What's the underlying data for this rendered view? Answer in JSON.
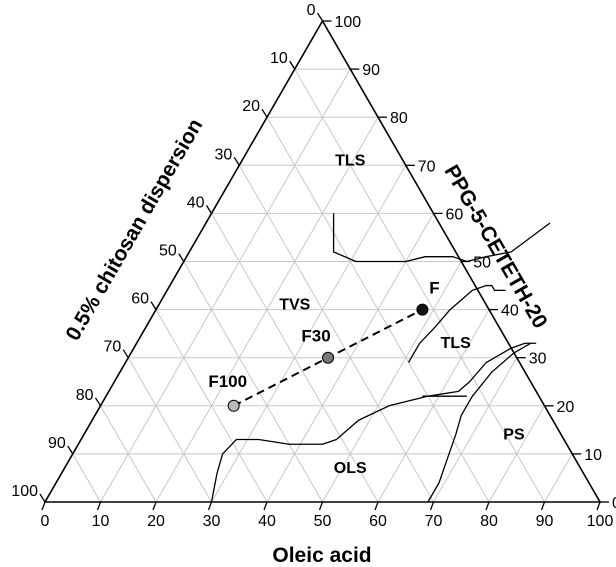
{
  "chart_data": {
    "type": "ternary",
    "axes": {
      "bottom": {
        "label": "Oleic acid",
        "ticks": [
          "0",
          "10",
          "20",
          "30",
          "40",
          "50",
          "60",
          "70",
          "80",
          "90",
          "100"
        ]
      },
      "right": {
        "label": "PPG-5-CETETH-20",
        "ticks": [
          "0",
          "10",
          "20",
          "30",
          "40",
          "50",
          "60",
          "70",
          "80",
          "90",
          "100"
        ]
      },
      "left": {
        "label": "0.5% chitosan dispersion",
        "ticks": [
          "0",
          "10",
          "20",
          "30",
          "40",
          "50",
          "60",
          "70",
          "80",
          "90",
          "100"
        ]
      }
    },
    "grid": true,
    "grid_step": 10,
    "regions": [
      {
        "label": "TLS",
        "a": 20,
        "b": 70
      },
      {
        "label": "TVS",
        "a": 25,
        "b": 40
      },
      {
        "label": "TLS",
        "a": 58,
        "b": 32
      },
      {
        "label": "PS",
        "a": 78,
        "b": 13
      },
      {
        "label": "OLS",
        "a": 52,
        "b": 6
      }
    ],
    "points": [
      {
        "label": "F",
        "a": 48,
        "b": 40,
        "color": "#111111"
      },
      {
        "label": "F30",
        "a": 36,
        "b": 30,
        "color": "#777777"
      },
      {
        "label": "F100",
        "a": 24,
        "b": 20,
        "color": "#bbbbbb"
      }
    ],
    "dashed_line": [
      "F100",
      "F30",
      "F"
    ],
    "boundaries": [
      [
        [
          22,
          60
        ],
        [
          26,
          52
        ],
        [
          31,
          50
        ],
        [
          35,
          50
        ],
        [
          40,
          50
        ],
        [
          43,
          51
        ],
        [
          48,
          51
        ],
        [
          51,
          50
        ],
        [
          54,
          51
        ],
        [
          58,
          52
        ],
        [
          62,
          58
        ]
      ],
      [
        [
          30,
          0
        ],
        [
          28,
          6
        ],
        [
          27,
          10
        ],
        [
          28,
          13
        ],
        [
          32,
          13
        ],
        [
          38,
          12
        ],
        [
          44,
          12
        ],
        [
          46,
          13
        ],
        [
          48,
          17
        ],
        [
          52,
          20
        ],
        [
          58,
          22
        ],
        [
          63,
          23
        ],
        [
          64,
          25
        ],
        [
          65,
          29
        ],
        [
          68,
          32
        ],
        [
          70,
          33
        ],
        [
          72,
          33
        ]
      ],
      [
        [
          51,
          29
        ],
        [
          51,
          33
        ],
        [
          52,
          36
        ],
        [
          53,
          40
        ],
        [
          55,
          44
        ],
        [
          57,
          45
        ],
        [
          58,
          45
        ],
        [
          59,
          44
        ],
        [
          61,
          44
        ]
      ],
      [
        [
          69,
          0
        ],
        [
          69,
          4
        ],
        [
          68,
          9
        ],
        [
          67,
          14
        ],
        [
          66,
          18
        ],
        [
          66,
          22
        ],
        [
          67,
          27
        ],
        [
          69,
          31
        ],
        [
          71,
          33
        ]
      ],
      [
        [
          65,
          22
        ],
        [
          57,
          22
        ]
      ]
    ]
  }
}
